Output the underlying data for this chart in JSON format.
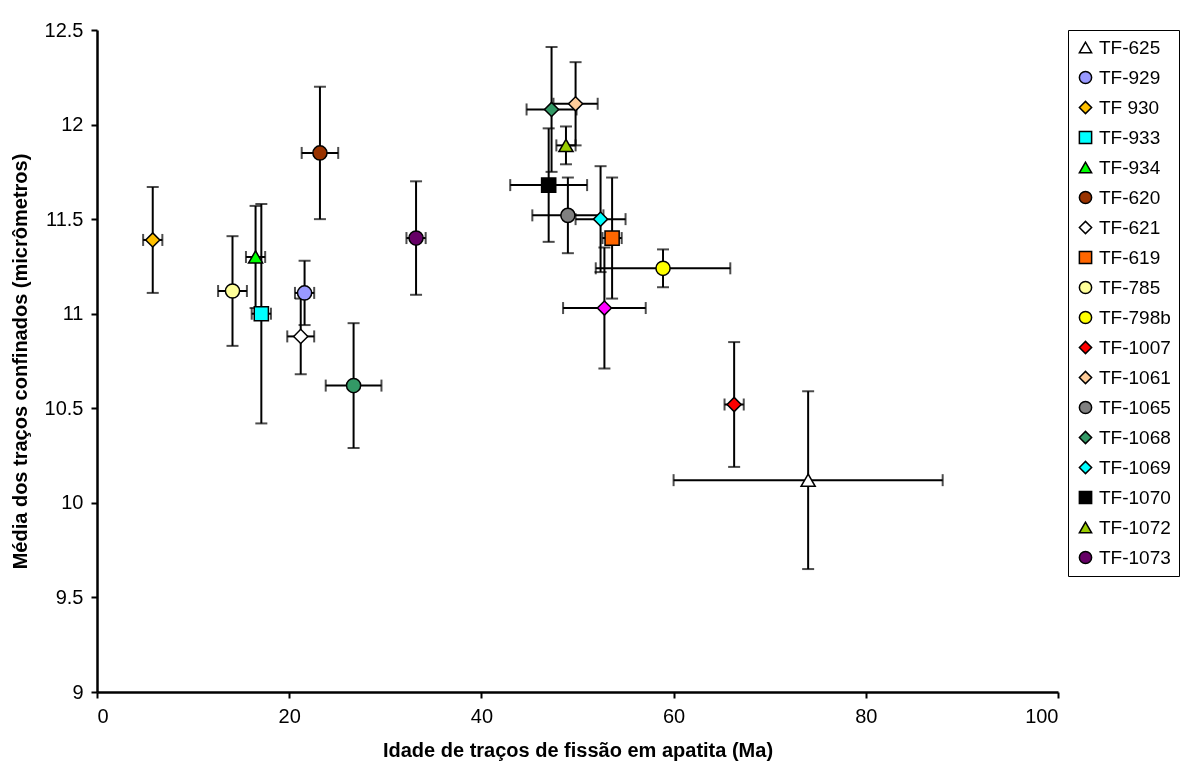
{
  "chart_data": {
    "type": "scatter",
    "xlabel": "Idade de traços de fissão em apatita (Ma)",
    "ylabel": "Média dos traços confinados (micrômetros)",
    "xlim": [
      0,
      100
    ],
    "xticks": [
      0,
      20,
      40,
      60,
      80,
      100
    ],
    "ylim": [
      9,
      12.5
    ],
    "yticks": [
      9,
      9.5,
      10,
      10.5,
      11,
      11.5,
      12,
      12.5
    ],
    "grid": false,
    "legend": "right",
    "series": [
      {
        "name": "TF-625",
        "color": "#ffffff",
        "marker": "triangle",
        "x": [
          74
        ],
        "values": [
          10.12
        ],
        "errors": [
          0.47
        ],
        "xerrors": [
          14
        ]
      },
      {
        "name": "TF-929",
        "color": "#9999ff",
        "marker": "circle",
        "x": [
          21.6
        ],
        "values": [
          11.11
        ],
        "errors": [
          0.17
        ],
        "xerrors": [
          1
        ]
      },
      {
        "name": "TF 930",
        "color": "#ffc000",
        "marker": "diamond",
        "x": [
          5.8
        ],
        "values": [
          11.39
        ],
        "errors": [
          0.28
        ],
        "xerrors": [
          1
        ]
      },
      {
        "name": "TF-933",
        "color": "#00ffff",
        "marker": "square",
        "x": [
          17.1
        ],
        "values": [
          11.0
        ],
        "errors": [
          0.58
        ],
        "xerrors": [
          1
        ]
      },
      {
        "name": "TF-934",
        "color": "#00ff00",
        "marker": "triangle",
        "x": [
          16.5
        ],
        "values": [
          11.3
        ],
        "errors": [
          0.27
        ],
        "xerrors": [
          1
        ]
      },
      {
        "name": "TF-620",
        "color": "#993300",
        "marker": "circle",
        "x": [
          23.2
        ],
        "values": [
          11.85
        ],
        "errors": [
          0.35
        ],
        "xerrors": [
          1.9
        ]
      },
      {
        "name": "TF-621",
        "color": "#ffffff",
        "marker": "diamond",
        "x": [
          21.2
        ],
        "values": [
          10.88
        ],
        "errors": [
          0.2
        ],
        "xerrors": [
          1.4
        ]
      },
      {
        "name": "TF-619",
        "color": "#ff6600",
        "marker": "square",
        "x": [
          53.6
        ],
        "values": [
          11.4
        ],
        "errors": [
          0.32
        ],
        "xerrors": [
          1
        ]
      },
      {
        "name": "TF-785",
        "color": "#ffff99",
        "marker": "circle",
        "x": [
          14.1
        ],
        "values": [
          11.12
        ],
        "errors": [
          0.29
        ],
        "xerrors": [
          1.5
        ]
      },
      {
        "name": "TF-798b",
        "color": "#ffff00",
        "marker": "circle",
        "x": [
          58.9
        ],
        "values": [
          11.24
        ],
        "errors": [
          0.1
        ],
        "xerrors": [
          7
        ]
      },
      {
        "name": "TF-1007",
        "color": "#ff0000",
        "marker": "diamond",
        "x": [
          66.3
        ],
        "values": [
          10.52
        ],
        "errors": [
          0.33
        ],
        "xerrors": [
          1
        ]
      },
      {
        "name": "TF-1061",
        "color": "#ffcc99",
        "marker": "diamond",
        "x": [
          49.8
        ],
        "values": [
          12.11
        ],
        "errors": [
          0.22
        ],
        "xerrors": [
          2.3
        ]
      },
      {
        "name": "TF-1065",
        "color": "#808080",
        "marker": "circle",
        "x": [
          49.0
        ],
        "values": [
          11.52
        ],
        "errors": [
          0.2
        ],
        "xerrors": [
          3.7
        ]
      },
      {
        "name": "TF-1068",
        "color": "#339966",
        "marker": "diamond",
        "x": [
          47.3
        ],
        "values": [
          12.08
        ],
        "errors": [
          0.33
        ],
        "xerrors": [
          2.6
        ]
      },
      {
        "name": "TF-1069",
        "color": "#00ffff",
        "marker": "diamond",
        "x": [
          52.4
        ],
        "values": [
          11.5
        ],
        "errors": [
          0.28
        ],
        "xerrors": [
          2.6
        ]
      },
      {
        "name": "TF-1070",
        "color": "#000000",
        "marker": "square",
        "x": [
          47.0
        ],
        "values": [
          11.68
        ],
        "errors": [
          0.3
        ],
        "xerrors": [
          4
        ]
      },
      {
        "name": "TF-1072",
        "color": "#99cc00",
        "marker": "triangle",
        "x": [
          48.8
        ],
        "values": [
          11.89
        ],
        "errors": [
          0.1
        ],
        "xerrors": [
          1
        ]
      },
      {
        "name": "TF-1073",
        "color": "#660066",
        "marker": "circle",
        "x": [
          33.2
        ],
        "values": [
          11.4
        ],
        "errors": [
          0.3
        ],
        "xerrors": [
          1
        ]
      },
      {
        "color": "#ff00ff",
        "marker": "diamond",
        "x": [
          52.8
        ],
        "values": [
          11.03
        ],
        "errors": [
          0.32
        ],
        "xerrors": [
          4.3
        ]
      },
      {
        "color": "#339966",
        "marker": "circle",
        "x": [
          26.7
        ],
        "values": [
          10.62
        ],
        "errors": [
          0.33
        ],
        "xerrors": [
          2.9
        ]
      }
    ]
  }
}
